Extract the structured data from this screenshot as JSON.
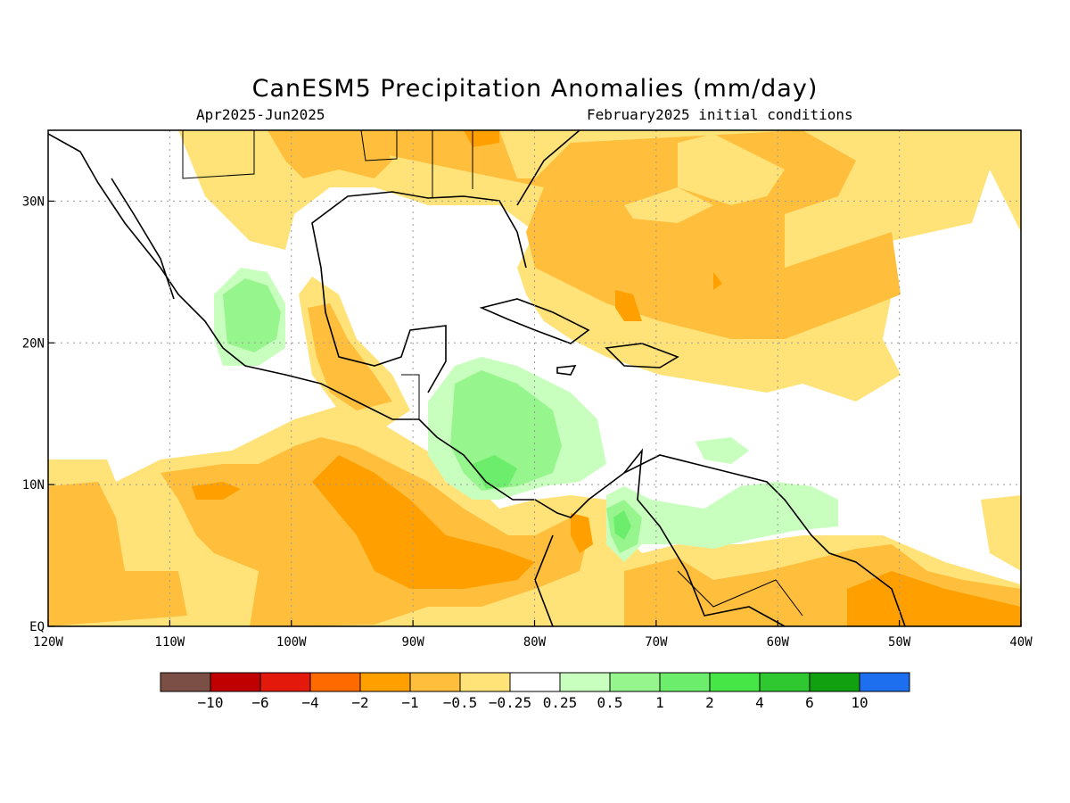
{
  "header": {
    "title": "CanESM5 Precipitation Anomalies (mm/day)",
    "period": "Apr2025-Jun2025",
    "init": "February2025 initial conditions"
  },
  "map": {
    "extent": {
      "lon": [
        -120,
        -40
      ],
      "lat": [
        0,
        35
      ]
    },
    "lon_ticks": [
      {
        "lon": -120,
        "label": "120W"
      },
      {
        "lon": -110,
        "label": "110W"
      },
      {
        "lon": -100,
        "label": "100W"
      },
      {
        "lon": -90,
        "label": "90W"
      },
      {
        "lon": -80,
        "label": "80W"
      },
      {
        "lon": -70,
        "label": "70W"
      },
      {
        "lon": -60,
        "label": "60W"
      },
      {
        "lon": -50,
        "label": "50W"
      },
      {
        "lon": -40,
        "label": "40W"
      }
    ],
    "lat_ticks": [
      {
        "lat": 0,
        "label": "EQ"
      },
      {
        "lat": 10,
        "label": "10N"
      },
      {
        "lat": 20,
        "label": "20N"
      },
      {
        "lat": 30,
        "label": "30N"
      }
    ]
  },
  "colorbar": {
    "colors": [
      "#7b4f45",
      "#c00000",
      "#e31a0b",
      "#ff6a00",
      "#ffa000",
      "#ffbe3c",
      "#ffe378",
      "#ffffff",
      "#c8ffbe",
      "#96f58c",
      "#6cee6c",
      "#46e646",
      "#30c830",
      "#10a010",
      "#1e6ef0"
    ],
    "labels": [
      "-10",
      "-6",
      "-4",
      "-2",
      "-1",
      "-0.5",
      "-0.25",
      "0.25",
      "0.5",
      "1",
      "2",
      "4",
      "6",
      "10"
    ]
  }
}
